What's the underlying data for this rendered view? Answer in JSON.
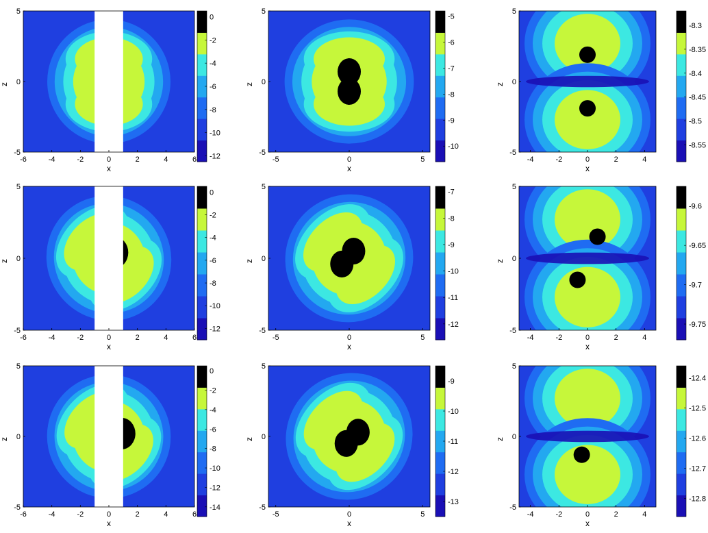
{
  "figure": {
    "type": "contour-grid",
    "rows": 3,
    "cols": 3
  },
  "colormap": [
    "#1a0fb5",
    "#1f3fe0",
    "#1f6cf2",
    "#23a8f0",
    "#3ce8e2",
    "#c6f73a",
    "#000000"
  ],
  "chart_data": [
    {
      "type": "heatmap",
      "row": 0,
      "col": 0,
      "xlabel": "x",
      "ylabel": "z",
      "xticks": [
        "-6",
        "-4",
        "-2",
        "0",
        "2",
        "4",
        "6"
      ],
      "xtick_values": [
        -6,
        -4,
        -2,
        0,
        2,
        4,
        6
      ],
      "xlim": [
        -6,
        6
      ],
      "yticks": [
        "-5",
        "0",
        "5"
      ],
      "ytick_values": [
        -5,
        0,
        5
      ],
      "ylim": [
        -5,
        5
      ],
      "colorbar": {
        "ticks": [
          "0",
          "-2",
          "-4",
          "-6",
          "-8",
          "-10",
          "-12"
        ],
        "tick_values": [
          0,
          -2,
          -4,
          -6,
          -8,
          -10,
          -12
        ],
        "range": [
          -12.5,
          0.5
        ]
      },
      "blank_strip": [
        -1,
        1
      ],
      "holes": [
        {
          "x": 0,
          "z": 0
        }
      ],
      "tilt": 0
    },
    {
      "type": "heatmap",
      "row": 0,
      "col": 1,
      "xlabel": "x",
      "ylabel": "z",
      "xticks": [
        "-5",
        "0",
        "5"
      ],
      "xtick_values": [
        -5,
        0,
        5
      ],
      "xlim": [
        -5.5,
        5.5
      ],
      "yticks": [
        "-5",
        "0",
        "5"
      ],
      "ytick_values": [
        -5,
        0,
        5
      ],
      "ylim": [
        -5,
        5
      ],
      "colorbar": {
        "ticks": [
          "-5",
          "-6",
          "-7",
          "-8",
          "-9",
          "-10"
        ],
        "tick_values": [
          -5,
          -6,
          -7,
          -8,
          -9,
          -10
        ],
        "range": [
          -10.6,
          -4.8
        ]
      },
      "holes": [
        {
          "x": 0,
          "z": 0.7
        },
        {
          "x": 0,
          "z": -0.7
        }
      ],
      "tilt": 0
    },
    {
      "type": "heatmap",
      "row": 0,
      "col": 2,
      "xlabel": "x",
      "ylabel": "z",
      "xticks": [
        "-4",
        "-2",
        "0",
        "2",
        "4"
      ],
      "xtick_values": [
        -4,
        -2,
        0,
        2,
        4
      ],
      "xlim": [
        -4.8,
        4.8
      ],
      "yticks": [
        "-5",
        "0",
        "5"
      ],
      "ytick_values": [
        -5,
        0,
        5
      ],
      "ylim": [
        -5,
        5
      ],
      "colorbar": {
        "ticks": [
          "-8.3",
          "-8.35",
          "-8.4",
          "-8.45",
          "-8.5",
          "-8.55"
        ],
        "tick_values": [
          -8.3,
          -8.35,
          -8.4,
          -8.45,
          -8.5,
          -8.55
        ],
        "range": [
          -8.585,
          -8.27
        ]
      },
      "holes": [
        {
          "x": 0,
          "z": 1.9
        },
        {
          "x": 0,
          "z": -1.9
        }
      ],
      "tilt": 0
    },
    {
      "type": "heatmap",
      "row": 1,
      "col": 0,
      "xlabel": "x",
      "ylabel": "z",
      "xticks": [
        "-6",
        "-4",
        "-2",
        "0",
        "2",
        "4",
        "6"
      ],
      "xtick_values": [
        -6,
        -4,
        -2,
        0,
        2,
        4,
        6
      ],
      "xlim": [
        -6,
        6
      ],
      "yticks": [
        "-5",
        "0",
        "5"
      ],
      "ytick_values": [
        -5,
        0,
        5
      ],
      "ylim": [
        -5,
        5
      ],
      "colorbar": {
        "ticks": [
          "0",
          "-2",
          "-4",
          "-6",
          "-8",
          "-10",
          "-12"
        ],
        "tick_values": [
          0,
          -2,
          -4,
          -6,
          -8,
          -10,
          -12
        ],
        "range": [
          -13,
          0.5
        ]
      },
      "blank_strip": [
        -1,
        1
      ],
      "holes": [
        {
          "x": 0.4,
          "z": 0.4
        }
      ],
      "tilt": 45
    },
    {
      "type": "heatmap",
      "row": 1,
      "col": 1,
      "xlabel": "x",
      "ylabel": "z",
      "xticks": [
        "-5",
        "0",
        "5"
      ],
      "xtick_values": [
        -5,
        0,
        5
      ],
      "xlim": [
        -5.5,
        5.5
      ],
      "yticks": [
        "-5",
        "0",
        "5"
      ],
      "ytick_values": [
        -5,
        0,
        5
      ],
      "ylim": [
        -5,
        5
      ],
      "colorbar": {
        "ticks": [
          "-7",
          "-8",
          "-9",
          "-10",
          "-11",
          "-12"
        ],
        "tick_values": [
          -7,
          -8,
          -9,
          -10,
          -11,
          -12
        ],
        "range": [
          -12.6,
          -6.8
        ]
      },
      "holes": [
        {
          "x": 0.3,
          "z": 0.5
        },
        {
          "x": -0.5,
          "z": -0.4
        }
      ],
      "tilt": 45
    },
    {
      "type": "heatmap",
      "row": 1,
      "col": 2,
      "xlabel": "x",
      "ylabel": "z",
      "xticks": [
        "-4",
        "-2",
        "0",
        "2",
        "4"
      ],
      "xtick_values": [
        -4,
        -2,
        0,
        2,
        4
      ],
      "xlim": [
        -4.8,
        4.8
      ],
      "yticks": [
        "-5",
        "0",
        "5"
      ],
      "ytick_values": [
        -5,
        0,
        5
      ],
      "ylim": [
        -5,
        5
      ],
      "colorbar": {
        "ticks": [
          "-9.6",
          "-9.65",
          "-9.7",
          "-9.75"
        ],
        "tick_values": [
          -9.6,
          -9.65,
          -9.7,
          -9.75
        ],
        "range": [
          -9.77,
          -9.575
        ]
      },
      "holes": [
        {
          "x": 0.7,
          "z": 1.5
        },
        {
          "x": -0.7,
          "z": -1.5
        }
      ],
      "tilt": 0
    },
    {
      "type": "heatmap",
      "row": 2,
      "col": 0,
      "xlabel": "x",
      "ylabel": "z",
      "xticks": [
        "-6",
        "-4",
        "-2",
        "0",
        "2",
        "4",
        "6"
      ],
      "xtick_values": [
        -6,
        -4,
        -2,
        0,
        2,
        4,
        6
      ],
      "xlim": [
        -6,
        6
      ],
      "yticks": [
        "-5",
        "0",
        "5"
      ],
      "ytick_values": [
        -5,
        0,
        5
      ],
      "ylim": [
        -5,
        5
      ],
      "colorbar": {
        "ticks": [
          "0",
          "-2",
          "-4",
          "-6",
          "-8",
          "-10",
          "-12",
          "-14"
        ],
        "tick_values": [
          0,
          -2,
          -4,
          -6,
          -8,
          -10,
          -12,
          -14
        ],
        "range": [
          -15,
          0.5
        ]
      },
      "blank_strip": [
        -1,
        1
      ],
      "holes": [
        {
          "x": 0.9,
          "z": 0.2
        }
      ],
      "tilt": 45
    },
    {
      "type": "heatmap",
      "row": 2,
      "col": 1,
      "xlabel": "x",
      "ylabel": "z",
      "xticks": [
        "-5",
        "0",
        "5"
      ],
      "xtick_values": [
        -5,
        0,
        5
      ],
      "xlim": [
        -5.5,
        5.5
      ],
      "yticks": [
        "-5",
        "0",
        "5"
      ],
      "ytick_values": [
        -5,
        0,
        5
      ],
      "ylim": [
        -5,
        5
      ],
      "colorbar": {
        "ticks": [
          "-9",
          "-10",
          "-11",
          "-12",
          "-13"
        ],
        "tick_values": [
          -9,
          -10,
          -11,
          -12,
          -13
        ],
        "range": [
          -13.5,
          -8.5
        ]
      },
      "holes": [
        {
          "x": 0.6,
          "z": 0.3
        },
        {
          "x": -0.2,
          "z": -0.5
        }
      ],
      "tilt": 45
    },
    {
      "type": "heatmap",
      "row": 2,
      "col": 2,
      "xlabel": "x",
      "ylabel": "z",
      "xticks": [
        "-4",
        "-2",
        "0",
        "2",
        "4"
      ],
      "xtick_values": [
        -4,
        -2,
        0,
        2,
        4
      ],
      "xlim": [
        -4.8,
        4.8
      ],
      "yticks": [
        "-5",
        "0",
        "5"
      ],
      "ytick_values": [
        -5,
        0,
        5
      ],
      "ylim": [
        -5,
        5
      ],
      "colorbar": {
        "ticks": [
          "-12.4",
          "-12.5",
          "-12.6",
          "-12.7",
          "-12.8"
        ],
        "tick_values": [
          -12.4,
          -12.5,
          -12.6,
          -12.7,
          -12.8
        ],
        "range": [
          -12.86,
          -12.36
        ]
      },
      "holes": [
        {
          "x": -0.4,
          "z": -1.3
        }
      ],
      "tilt": 0
    }
  ]
}
